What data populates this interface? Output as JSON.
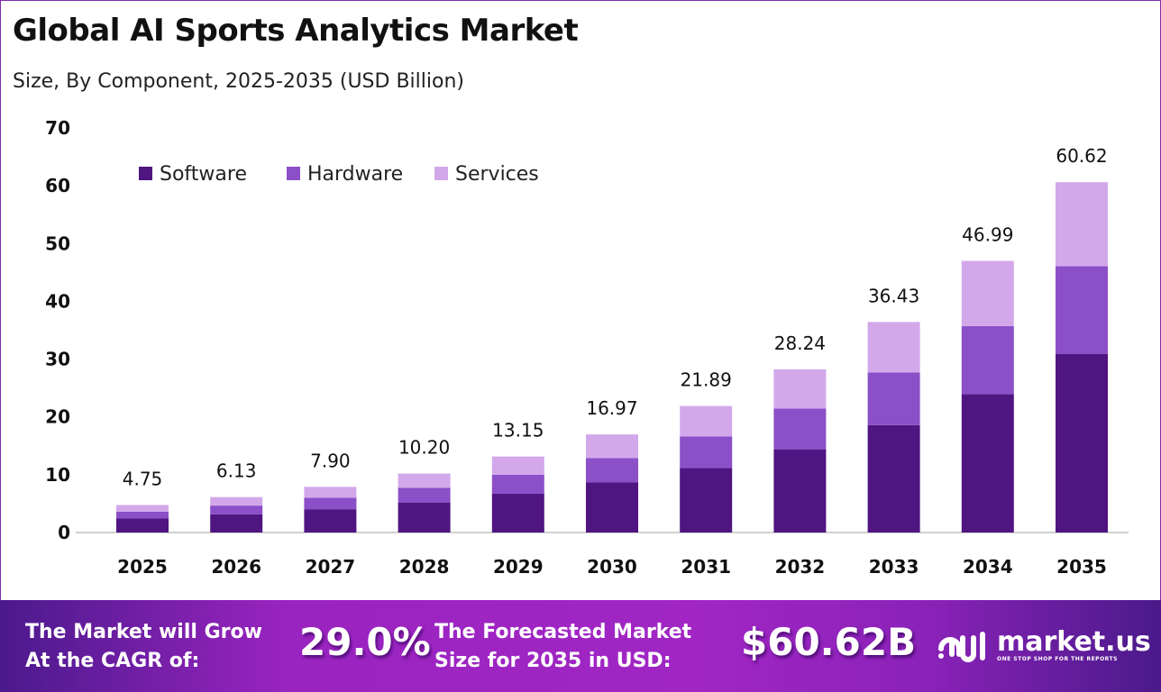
{
  "header": {
    "title": "Global AI Sports Analytics Market",
    "subtitle": "Size, By Component, 2025-2035 (USD Billion)"
  },
  "chart_data": {
    "type": "bar",
    "stacked": true,
    "title": "Global AI Sports Analytics Market",
    "subtitle": "Size, By Component, 2025-2035 (USD Billion)",
    "xlabel": "",
    "ylabel": "",
    "ylim": [
      0,
      70
    ],
    "yticks": [
      0,
      10,
      20,
      30,
      40,
      50,
      60,
      70
    ],
    "grid": false,
    "legend_position": "top-left",
    "categories": [
      "2025",
      "2026",
      "2027",
      "2028",
      "2029",
      "2030",
      "2031",
      "2032",
      "2033",
      "2034",
      "2035"
    ],
    "series": [
      {
        "name": "Software",
        "color": "#4f1581",
        "values": [
          2.42,
          3.13,
          4.03,
          5.2,
          6.71,
          8.65,
          11.16,
          14.4,
          18.58,
          23.96,
          30.92
        ]
      },
      {
        "name": "Hardware",
        "color": "#8b4fc8",
        "values": [
          1.19,
          1.53,
          1.98,
          2.55,
          3.29,
          4.24,
          5.47,
          7.06,
          9.11,
          11.75,
          15.16
        ]
      },
      {
        "name": "Services",
        "color": "#d3a8eb",
        "values": [
          1.14,
          1.47,
          1.89,
          2.45,
          3.15,
          4.08,
          5.26,
          6.78,
          8.74,
          11.28,
          14.54
        ]
      }
    ],
    "totals": [
      "4.75",
      "6.13",
      "7.90",
      "10.20",
      "13.15",
      "16.97",
      "21.89",
      "28.24",
      "36.43",
      "46.99",
      "60.62"
    ]
  },
  "banner": {
    "cagr_label_line1": "The Market will Grow",
    "cagr_label_line2": "At the CAGR of:",
    "cagr_value": "29.0%",
    "forecast_label_line1": "The Forecasted Market",
    "forecast_label_line2": "Size for 2035 in USD:",
    "forecast_value": "$60.62B",
    "logo_text": "market.us",
    "logo_tagline": "ONE STOP SHOP FOR THE REPORTS"
  }
}
